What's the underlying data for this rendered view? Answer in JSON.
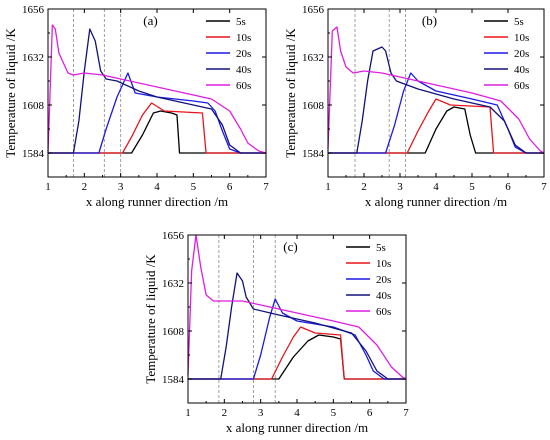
{
  "colors": {
    "5s": "#000000",
    "10s": "#e8141c",
    "20s": "#1a1ae6",
    "40s": "#12127a",
    "60s": "#e01ee0",
    "guide": "#888888"
  },
  "chart_data": [
    {
      "type": "line",
      "panel_label": "(a)",
      "xlabel": "x along runner direction /m",
      "ylabel": "Temperature of liquid /K",
      "xlim": [
        1,
        7
      ],
      "ylim": [
        1572,
        1656
      ],
      "xticks": [
        1,
        2,
        3,
        4,
        5,
        6,
        7
      ],
      "yticks": [
        1584,
        1608,
        1632,
        1656
      ],
      "legend_position": "top-right",
      "guide_lines_x": [
        1.7,
        2.55,
        3.0
      ],
      "series": [
        {
          "name": "5s",
          "color_key": "5s",
          "points": [
            [
              1,
              1584
            ],
            [
              3.3,
              1584
            ],
            [
              3.6,
              1593
            ],
            [
              3.9,
              1604
            ],
            [
              4.1,
              1605
            ],
            [
              4.4,
              1604
            ],
            [
              4.55,
              1603
            ],
            [
              4.62,
              1584
            ],
            [
              7,
              1584
            ]
          ]
        },
        {
          "name": "10s",
          "color_key": "10s",
          "points": [
            [
              1,
              1584
            ],
            [
              3.05,
              1584
            ],
            [
              3.3,
              1592
            ],
            [
              3.6,
              1603
            ],
            [
              3.85,
              1609
            ],
            [
              4.2,
              1605
            ],
            [
              5.25,
              1604
            ],
            [
              5.35,
              1584
            ],
            [
              7,
              1584
            ]
          ]
        },
        {
          "name": "20s",
          "color_key": "20s",
          "points": [
            [
              1,
              1584
            ],
            [
              2.4,
              1584
            ],
            [
              2.6,
              1596
            ],
            [
              2.9,
              1612
            ],
            [
              3.2,
              1624
            ],
            [
              3.4,
              1614
            ],
            [
              4.0,
              1612
            ],
            [
              5.0,
              1610
            ],
            [
              5.4,
              1609
            ],
            [
              5.6,
              1605
            ],
            [
              5.8,
              1595
            ],
            [
              6.0,
              1586
            ],
            [
              6.3,
              1584
            ],
            [
              7,
              1584
            ]
          ]
        },
        {
          "name": "40s",
          "color_key": "40s",
          "points": [
            [
              1,
              1584
            ],
            [
              1.7,
              1584
            ],
            [
              1.85,
              1600
            ],
            [
              2.0,
              1625
            ],
            [
              2.15,
              1646
            ],
            [
              2.3,
              1640
            ],
            [
              2.45,
              1625
            ],
            [
              2.6,
              1621
            ],
            [
              2.9,
              1620
            ],
            [
              3.5,
              1615
            ],
            [
              4.0,
              1612
            ],
            [
              5.0,
              1608
            ],
            [
              5.5,
              1606
            ],
            [
              5.8,
              1598
            ],
            [
              6.0,
              1588
            ],
            [
              6.3,
              1584
            ],
            [
              7,
              1584
            ]
          ]
        },
        {
          "name": "60s",
          "color_key": "60s",
          "points": [
            [
              1,
              1584
            ],
            [
              1.12,
              1648
            ],
            [
              1.2,
              1646
            ],
            [
              1.3,
              1634
            ],
            [
              1.4,
              1630
            ],
            [
              1.55,
              1624
            ],
            [
              1.7,
              1623
            ],
            [
              2.0,
              1624
            ],
            [
              2.5,
              1623
            ],
            [
              3.0,
              1621
            ],
            [
              4.0,
              1617
            ],
            [
              5.0,
              1613
            ],
            [
              5.5,
              1611
            ],
            [
              6.0,
              1605
            ],
            [
              6.3,
              1596
            ],
            [
              6.5,
              1589
            ],
            [
              6.8,
              1585
            ],
            [
              7,
              1584
            ]
          ]
        }
      ]
    },
    {
      "type": "line",
      "panel_label": "(b)",
      "xlabel": "x along runner direction /m",
      "ylabel": "Temperature of liquid /K",
      "xlim": [
        1,
        7
      ],
      "ylim": [
        1572,
        1656
      ],
      "xticks": [
        1,
        2,
        3,
        4,
        5,
        6,
        7
      ],
      "yticks": [
        1584,
        1608,
        1632,
        1656
      ],
      "legend_position": "top-right",
      "guide_lines_x": [
        1.75,
        2.7,
        3.15
      ],
      "series": [
        {
          "name": "5s",
          "color_key": "5s",
          "points": [
            [
              1,
              1584
            ],
            [
              3.7,
              1584
            ],
            [
              4.0,
              1596
            ],
            [
              4.3,
              1605
            ],
            [
              4.5,
              1607
            ],
            [
              4.8,
              1606
            ],
            [
              4.95,
              1593
            ],
            [
              5.1,
              1584
            ],
            [
              7,
              1584
            ]
          ]
        },
        {
          "name": "10s",
          "color_key": "10s",
          "points": [
            [
              1,
              1584
            ],
            [
              3.2,
              1584
            ],
            [
              3.5,
              1595
            ],
            [
              3.8,
              1605
            ],
            [
              4.0,
              1611
            ],
            [
              4.4,
              1608
            ],
            [
              5.5,
              1607
            ],
            [
              5.6,
              1584
            ],
            [
              7,
              1584
            ]
          ]
        },
        {
          "name": "20s",
          "color_key": "20s",
          "points": [
            [
              1,
              1584
            ],
            [
              2.6,
              1584
            ],
            [
              2.85,
              1598
            ],
            [
              3.1,
              1615
            ],
            [
              3.3,
              1624
            ],
            [
              3.5,
              1620
            ],
            [
              4.0,
              1615
            ],
            [
              5.0,
              1611
            ],
            [
              5.7,
              1608
            ],
            [
              6.0,
              1596
            ],
            [
              6.2,
              1587
            ],
            [
              6.5,
              1584
            ],
            [
              7,
              1584
            ]
          ]
        },
        {
          "name": "40s",
          "color_key": "40s",
          "points": [
            [
              1,
              1584
            ],
            [
              1.8,
              1584
            ],
            [
              1.95,
              1600
            ],
            [
              2.1,
              1620
            ],
            [
              2.25,
              1635
            ],
            [
              2.5,
              1637
            ],
            [
              2.6,
              1635
            ],
            [
              2.75,
              1624
            ],
            [
              2.9,
              1620
            ],
            [
              3.5,
              1616
            ],
            [
              4.5,
              1611
            ],
            [
              5.5,
              1607
            ],
            [
              5.9,
              1600
            ],
            [
              6.2,
              1588
            ],
            [
              6.5,
              1584
            ],
            [
              7,
              1584
            ]
          ]
        },
        {
          "name": "60s",
          "color_key": "60s",
          "points": [
            [
              1,
              1586
            ],
            [
              1.12,
              1645
            ],
            [
              1.25,
              1647
            ],
            [
              1.35,
              1635
            ],
            [
              1.5,
              1627
            ],
            [
              1.7,
              1624
            ],
            [
              2.0,
              1625
            ],
            [
              2.5,
              1624
            ],
            [
              3.0,
              1622
            ],
            [
              4.0,
              1618
            ],
            [
              5.0,
              1614
            ],
            [
              5.8,
              1610
            ],
            [
              6.3,
              1601
            ],
            [
              6.6,
              1591
            ],
            [
              6.9,
              1585
            ],
            [
              7,
              1584
            ]
          ]
        }
      ]
    },
    {
      "type": "line",
      "panel_label": "(c)",
      "xlabel": "x along runner direction /m",
      "ylabel": "Temperature of liquid /K",
      "xlim": [
        1,
        7
      ],
      "ylim": [
        1572,
        1656
      ],
      "xticks": [
        1,
        2,
        3,
        4,
        5,
        6,
        7
      ],
      "yticks": [
        1584,
        1608,
        1632,
        1656
      ],
      "legend_position": "top-right",
      "guide_lines_x": [
        1.85,
        2.8,
        3.4
      ],
      "series": [
        {
          "name": "5s",
          "color_key": "5s",
          "points": [
            [
              1,
              1584
            ],
            [
              3.5,
              1584
            ],
            [
              3.9,
              1595
            ],
            [
              4.3,
              1603
            ],
            [
              4.6,
              1606
            ],
            [
              5.0,
              1605
            ],
            [
              5.2,
              1604
            ],
            [
              5.3,
              1584
            ],
            [
              7,
              1584
            ]
          ]
        },
        {
          "name": "10s",
          "color_key": "10s",
          "points": [
            [
              1,
              1584
            ],
            [
              3.3,
              1584
            ],
            [
              3.6,
              1595
            ],
            [
              3.9,
              1605
            ],
            [
              4.1,
              1610
            ],
            [
              4.5,
              1607
            ],
            [
              5.2,
              1606
            ],
            [
              5.3,
              1584
            ],
            [
              7,
              1584
            ]
          ]
        },
        {
          "name": "20s",
          "color_key": "20s",
          "points": [
            [
              1,
              1584
            ],
            [
              2.8,
              1584
            ],
            [
              3.0,
              1596
            ],
            [
              3.25,
              1615
            ],
            [
              3.4,
              1624
            ],
            [
              3.6,
              1617
            ],
            [
              4.0,
              1613
            ],
            [
              5.0,
              1610
            ],
            [
              5.6,
              1606
            ],
            [
              5.9,
              1596
            ],
            [
              6.1,
              1588
            ],
            [
              6.4,
              1584
            ],
            [
              7,
              1584
            ]
          ]
        },
        {
          "name": "40s",
          "color_key": "40s",
          "points": [
            [
              1,
              1584
            ],
            [
              1.9,
              1584
            ],
            [
              2.05,
              1600
            ],
            [
              2.2,
              1620
            ],
            [
              2.35,
              1637
            ],
            [
              2.5,
              1633
            ],
            [
              2.6,
              1625
            ],
            [
              2.8,
              1619
            ],
            [
              3.5,
              1616
            ],
            [
              4.5,
              1612
            ],
            [
              5.5,
              1607
            ],
            [
              5.9,
              1598
            ],
            [
              6.2,
              1588
            ],
            [
              6.5,
              1584
            ],
            [
              7,
              1584
            ]
          ]
        },
        {
          "name": "60s",
          "color_key": "60s",
          "points": [
            [
              1,
              1586
            ],
            [
              1.1,
              1638
            ],
            [
              1.22,
              1656
            ],
            [
              1.35,
              1640
            ],
            [
              1.5,
              1626
            ],
            [
              1.7,
              1623
            ],
            [
              2.0,
              1623
            ],
            [
              2.5,
              1623
            ],
            [
              3.0,
              1621
            ],
            [
              4.0,
              1617
            ],
            [
              5.0,
              1613
            ],
            [
              5.7,
              1610
            ],
            [
              6.2,
              1601
            ],
            [
              6.6,
              1590
            ],
            [
              6.9,
              1585
            ],
            [
              7,
              1584
            ]
          ]
        }
      ]
    }
  ]
}
